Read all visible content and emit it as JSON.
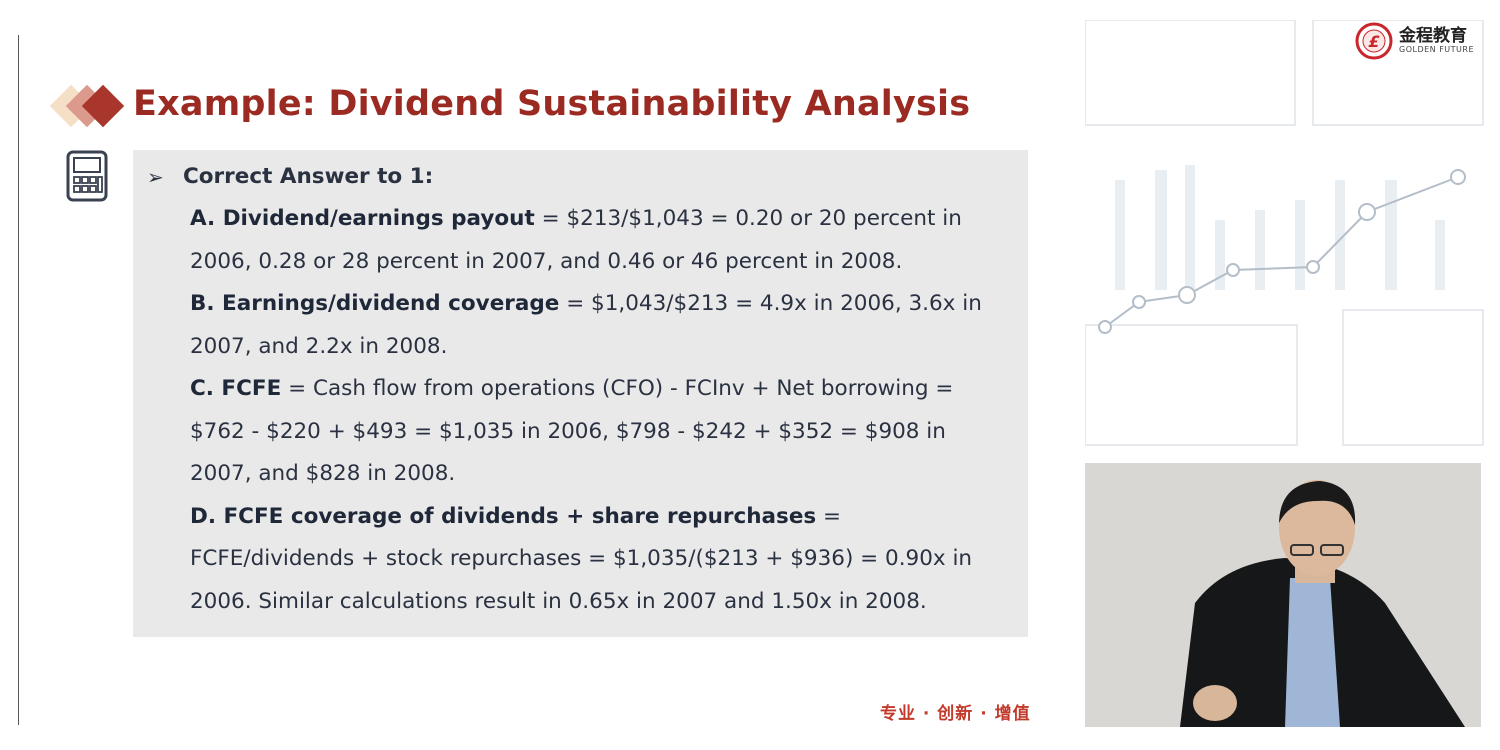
{
  "slide": {
    "title": "Example: Dividend Sustainability Analysis",
    "heading": "Correct Answer to 1:",
    "items": [
      {
        "label": "A. Dividend/earnings payout",
        "line1": " = $213/$1,043 = 0.20 or 20 percent in",
        "line2": "2006, 0.28 or 28 percent in 2007, and 0.46 or 46 percent in 2008."
      },
      {
        "label": "B. Earnings/dividend coverage",
        "line1": " = $1,043/$213 = 4.9x in 2006, 3.6x in",
        "line2": "2007, and 2.2x in 2008."
      },
      {
        "label": "C. FCFE",
        "line1": " = Cash flow from operations (CFO) - FCInv + Net borrowing =",
        "line2": "$762 - $220 + $493 = $1,035 in 2006, $798 - $242 + $352 = $908 in",
        "line3": "2007, and $828 in 2008."
      },
      {
        "label": "D. FCFE coverage of dividends + share repurchases",
        "line1": " =",
        "line2": "FCFE/dividends + stock repurchases = $1,035/($213 + $936) = 0.90x in",
        "line3": "2006. Similar calculations result in 0.65x in 2007 and 1.50x in 2008."
      }
    ],
    "footer": "专业 · 创新 · 增值"
  },
  "logo": {
    "cn": "金程教育",
    "en": "GOLDEN FUTURE"
  },
  "colors": {
    "title": "#9b2b22",
    "box": "#e9e9ea"
  }
}
